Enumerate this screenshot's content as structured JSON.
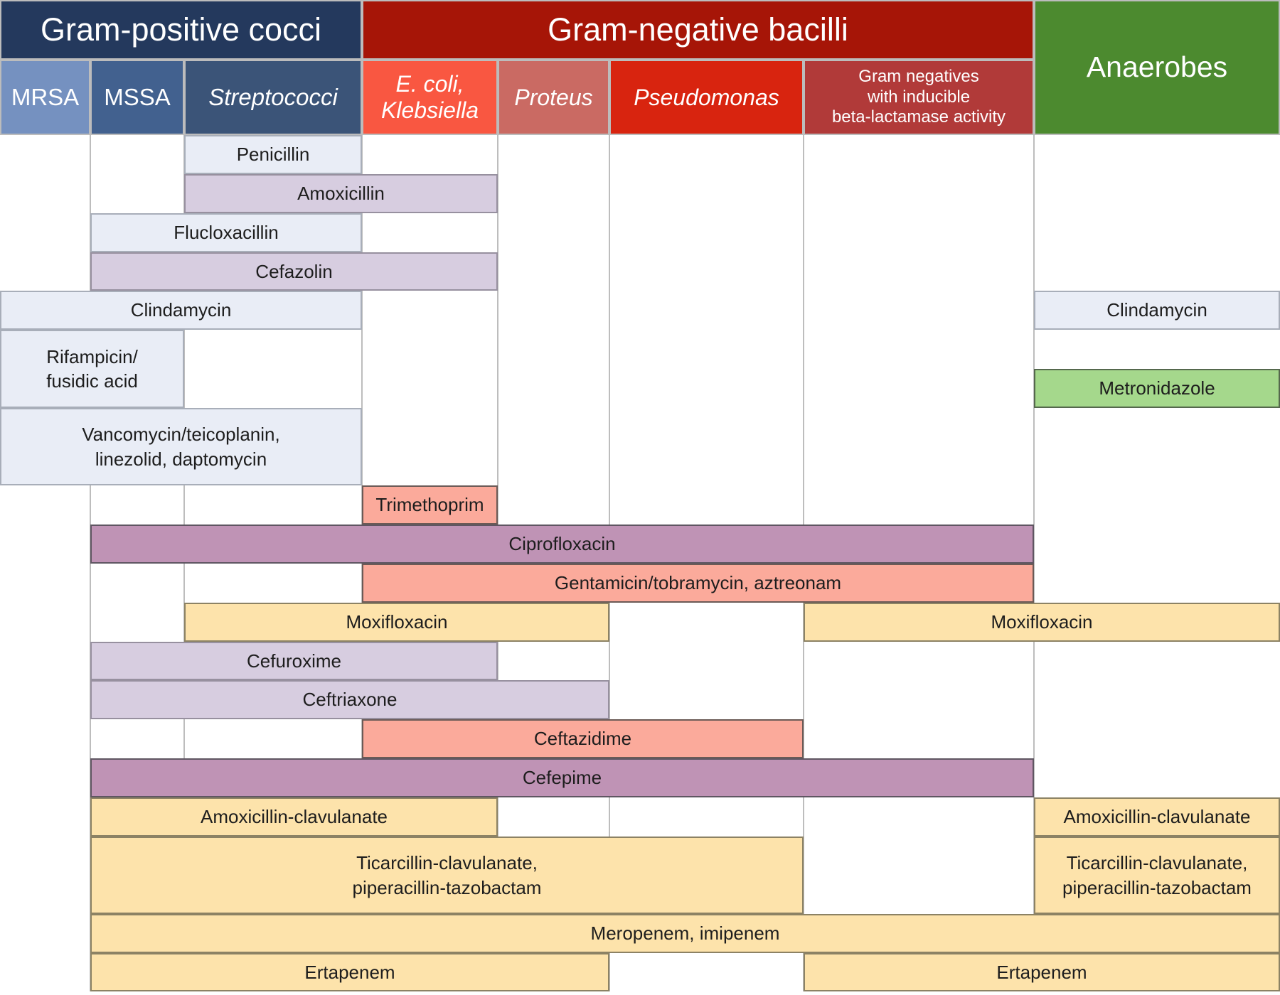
{
  "palette": {
    "grid_line": "#bdbdbd",
    "bar_text": "#1d1d1d",
    "header_text": "#ffffff",
    "bar_styles": {
      "bluegray": {
        "fill": "#e9edf6",
        "border": "#a8aeb9"
      },
      "mauve": {
        "fill": "#d7cde0",
        "border": "#97909f"
      },
      "purple": {
        "fill": "#bf93b5",
        "border": "#5f5662"
      },
      "salmon": {
        "fill": "#fbaa9b",
        "border": "#6b5a56"
      },
      "yellow": {
        "fill": "#fde3ab",
        "border": "#8c8264"
      },
      "green": {
        "fill": "#a5d88c",
        "border": "#55684d"
      }
    }
  },
  "header": {
    "groups": [
      {
        "id": "gram-positive-cocci",
        "label": "Gram-positive cocci",
        "cols": [
          0,
          2
        ],
        "fill": "#24395d",
        "full_height": false
      },
      {
        "id": "gram-negative-bacilli",
        "label": "Gram-negative bacilli",
        "cols": [
          3,
          6
        ],
        "fill": "#a61507",
        "full_height": false
      },
      {
        "id": "anaerobes",
        "label": "Anaerobes",
        "cols": [
          7,
          7
        ],
        "fill": "#4c8a2f",
        "full_height": true
      }
    ],
    "columns": [
      {
        "id": "mrsa",
        "lines": [
          "MRSA"
        ],
        "col": 0,
        "fill": "#7591c0",
        "italic": false
      },
      {
        "id": "mssa",
        "lines": [
          "MSSA"
        ],
        "col": 1,
        "fill": "#42618f",
        "italic": false
      },
      {
        "id": "streptococci",
        "lines": [
          "Streptococci"
        ],
        "col": 2,
        "fill": "#3b5478",
        "italic": true
      },
      {
        "id": "e-coli-klebsiella",
        "lines": [
          "E. coli,",
          "Klebsiella"
        ],
        "col": 3,
        "fill": "#f95741",
        "italic": true
      },
      {
        "id": "proteus",
        "lines": [
          "Proteus"
        ],
        "col": 4,
        "fill": "#ca6a63",
        "italic": true
      },
      {
        "id": "pseudomonas",
        "lines": [
          "Pseudomonas"
        ],
        "col": 5,
        "fill": "#d8240f",
        "italic": true
      },
      {
        "id": "gram-negatives-inducible",
        "lines": [
          "Gram negatives",
          "with inducible",
          "beta-lactamase activity"
        ],
        "col": 6,
        "fill": "#b13a39",
        "italic": false
      }
    ]
  },
  "bars": [
    {
      "id": "penicillin",
      "lines": [
        "Penicillin"
      ],
      "cols": [
        2,
        2
      ],
      "row": 0,
      "style": "bluegray"
    },
    {
      "id": "amoxicillin",
      "lines": [
        "Amoxicillin"
      ],
      "cols": [
        2,
        3
      ],
      "row": 1,
      "style": "mauve"
    },
    {
      "id": "flucloxacillin",
      "lines": [
        "Flucloxacillin"
      ],
      "cols": [
        1,
        2
      ],
      "row": 2,
      "style": "bluegray"
    },
    {
      "id": "cefazolin",
      "lines": [
        "Cefazolin"
      ],
      "cols": [
        1,
        3
      ],
      "row": 3,
      "style": "mauve"
    },
    {
      "id": "clindamycin",
      "lines": [
        "Clindamycin"
      ],
      "cols": [
        0,
        2
      ],
      "row": 4,
      "style": "bluegray"
    },
    {
      "id": "clindamycin-anaerobes",
      "lines": [
        "Clindamycin"
      ],
      "cols": [
        7,
        7
      ],
      "row": 4,
      "style": "bluegray"
    },
    {
      "id": "rifampicin-fusidic-acid",
      "lines": [
        "Rifampicin/",
        "fusidic acid"
      ],
      "cols": [
        0,
        1
      ],
      "row": 5,
      "style": "bluegray"
    },
    {
      "id": "metronidazole",
      "lines": [
        "Metronidazole"
      ],
      "cols": [
        7,
        7
      ],
      "row": 5,
      "style": "green",
      "half": "bottom"
    },
    {
      "id": "vancomycin-linezolid-daptomycin",
      "lines": [
        "Vancomycin/teicoplanin,",
        "linezolid, daptomycin"
      ],
      "cols": [
        0,
        2
      ],
      "row": 6,
      "style": "bluegray"
    },
    {
      "id": "trimethoprim",
      "lines": [
        "Trimethoprim"
      ],
      "cols": [
        3,
        3
      ],
      "row": 7,
      "style": "salmon"
    },
    {
      "id": "ciprofloxacin",
      "lines": [
        "Ciprofloxacin"
      ],
      "cols": [
        1,
        6
      ],
      "row": 8,
      "style": "purple"
    },
    {
      "id": "gentamicin-tobramycin-aztreonam",
      "lines": [
        "Gentamicin/tobramycin, aztreonam"
      ],
      "cols": [
        3,
        6
      ],
      "row": 9,
      "style": "salmon"
    },
    {
      "id": "moxifloxacin",
      "lines": [
        "Moxifloxacin"
      ],
      "cols": [
        2,
        4
      ],
      "row": 10,
      "style": "yellow"
    },
    {
      "id": "moxifloxacin-anaerobes",
      "lines": [
        "Moxifloxacin"
      ],
      "cols": [
        6,
        7
      ],
      "row": 10,
      "style": "yellow"
    },
    {
      "id": "cefuroxime",
      "lines": [
        "Cefuroxime"
      ],
      "cols": [
        1,
        3
      ],
      "row": 11,
      "style": "mauve"
    },
    {
      "id": "ceftriaxone",
      "lines": [
        "Ceftriaxone"
      ],
      "cols": [
        1,
        4
      ],
      "row": 12,
      "style": "mauve"
    },
    {
      "id": "ceftazidime",
      "lines": [
        "Ceftazidime"
      ],
      "cols": [
        3,
        5
      ],
      "row": 13,
      "style": "salmon"
    },
    {
      "id": "cefepime",
      "lines": [
        "Cefepime"
      ],
      "cols": [
        1,
        6
      ],
      "row": 14,
      "style": "purple"
    },
    {
      "id": "amoxicillin-clavulanate",
      "lines": [
        "Amoxicillin-clavulanate"
      ],
      "cols": [
        1,
        3
      ],
      "row": 15,
      "style": "yellow"
    },
    {
      "id": "amoxicillin-clavulanate-anaerobes",
      "lines": [
        "Amoxicillin-clavulanate"
      ],
      "cols": [
        7,
        7
      ],
      "row": 15,
      "style": "yellow"
    },
    {
      "id": "ticarcillin-piperacillin",
      "lines": [
        "Ticarcillin-clavulanate,",
        "piperacillin-tazobactam"
      ],
      "cols": [
        1,
        5
      ],
      "row": 16,
      "style": "yellow"
    },
    {
      "id": "ticarcillin-piperacillin-anaerobes",
      "lines": [
        "Ticarcillin-clavulanate,",
        "piperacillin-tazobactam"
      ],
      "cols": [
        7,
        7
      ],
      "row": 16,
      "style": "yellow"
    },
    {
      "id": "meropenem-imipenem",
      "lines": [
        "Meropenem, imipenem"
      ],
      "cols": [
        1,
        7
      ],
      "row": 17,
      "style": "yellow"
    },
    {
      "id": "ertapenem",
      "lines": [
        "Ertapenem"
      ],
      "cols": [
        1,
        4
      ],
      "row": 18,
      "style": "yellow"
    },
    {
      "id": "ertapenem-right",
      "lines": [
        "Ertapenem"
      ],
      "cols": [
        6,
        7
      ],
      "row": 18,
      "style": "yellow"
    }
  ]
}
